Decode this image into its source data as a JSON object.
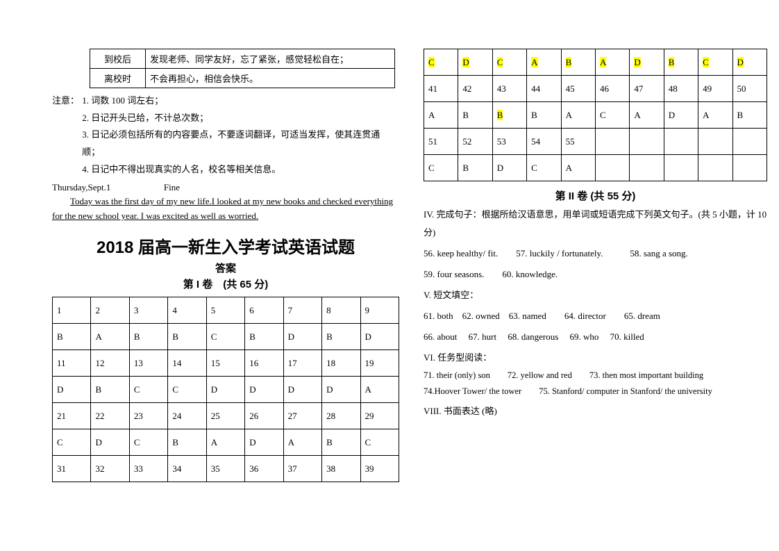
{
  "intro_table": {
    "rows": [
      {
        "label": "到校后",
        "text": "发现老师、同学友好，忘了紧张，感觉轻松自在；"
      },
      {
        "label": "离校时",
        "text": "不会再担心，相信会快乐。"
      }
    ]
  },
  "notes": {
    "label": "注意：",
    "items": [
      "1. 词数 100 词左右；",
      "2. 日记开头已给，不计总次数；",
      "3. 日记必须包括所有的内容要点，不要逐词翻译，可适当发挥，使其连贯通顺；",
      "4. 日记中不得出现真实的人名，校名等相关信息。"
    ]
  },
  "diary": {
    "header_left": "Thursday,Sept.1",
    "header_right": "Fine",
    "body": "Today was the first day of my new life.I looked at my new books and checked everything for the new school year. I was excited as well as worried."
  },
  "titles": {
    "main": "2018 届高一新生入学考试英语试题",
    "sub": "答案",
    "part1": "第 I 卷　(共 65 分)",
    "part2": "第 II 卷  (共 55 分)"
  },
  "answer_grid_left": {
    "cols": 9,
    "rows": [
      {
        "nums": [
          "1",
          "2",
          "3",
          "4",
          "5",
          "6",
          "7",
          "8",
          "9"
        ]
      },
      {
        "ans": [
          "B",
          "A",
          "B",
          "B",
          "C",
          "B",
          "D",
          "B",
          "D"
        ]
      },
      {
        "nums": [
          "11",
          "12",
          "13",
          "14",
          "15",
          "16",
          "17",
          "18",
          "19"
        ]
      },
      {
        "ans": [
          "D",
          "B",
          "C",
          "C",
          "D",
          "D",
          "D",
          "D",
          "A"
        ]
      },
      {
        "nums": [
          "21",
          "22",
          "23",
          "24",
          "25",
          "26",
          "27",
          "28",
          "29"
        ]
      },
      {
        "ans": [
          "C",
          "D",
          "C",
          "B",
          "A",
          "D",
          "A",
          "B",
          "C"
        ]
      },
      {
        "nums": [
          "31",
          "32",
          "33",
          "34",
          "35",
          "36",
          "37",
          "38",
          "39"
        ]
      }
    ]
  },
  "answer_grid_right": {
    "cols": 10,
    "rows": [
      {
        "ans": [
          "C",
          "D",
          "C",
          "A",
          "B",
          "A",
          "D",
          "B",
          "C",
          "D"
        ],
        "highlight_all": true
      },
      {
        "nums": [
          "41",
          "42",
          "43",
          "44",
          "45",
          "46",
          "47",
          "48",
          "49",
          "50"
        ]
      },
      {
        "ans": [
          "A",
          "B",
          "B",
          "B",
          "A",
          "C",
          "A",
          "D",
          "A",
          "B"
        ],
        "highlight_indices": [
          2
        ]
      },
      {
        "nums": [
          "51",
          "52",
          "53",
          "54",
          "55",
          "",
          "",
          "",
          "",
          ""
        ]
      },
      {
        "ans": [
          "C",
          "B",
          "D",
          "C",
          "A",
          "",
          "",
          "",
          "",
          ""
        ]
      }
    ]
  },
  "part2_sections": {
    "iv_intro": "IV. 完成句子：根据所给汉语意思，用单词或短语完成下列英文句子。(共 5 小题，计 10 分)",
    "iv_line1": "56. keep healthy/ fit.　　57. luckily / fortunately.　　　58. sang a song.",
    "iv_line2": "59. four seasons.　　60. knowledge.",
    "v_title": "V. 短文填空：",
    "v_line1": "61. both　62. owned　63. named　　64. director　　65. dream",
    "v_line2": "66. about　 67. hurt　 68. dangerous　 69. who　 70. killed",
    "vi_title": "VI. 任务型阅读：",
    "vi_line1": "71. their (only) son　　72. yellow and red　　73. then most important building",
    "vi_line2": "74.Hoover Tower/ the tower　　75. Stanford/ computer in Stanford/ the university",
    "viii": "VIII. 书面表达 (略)"
  }
}
